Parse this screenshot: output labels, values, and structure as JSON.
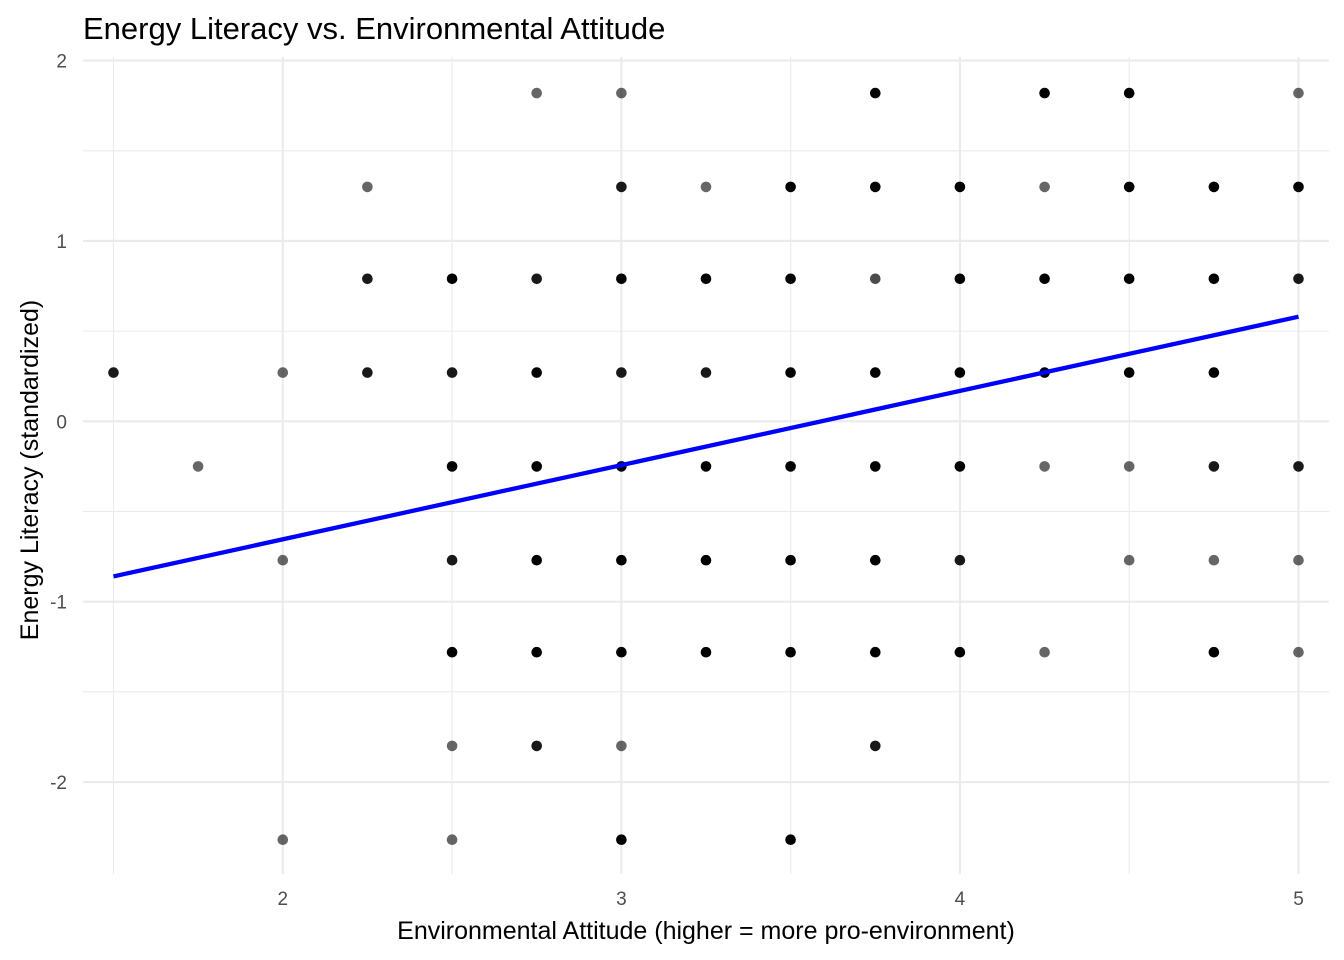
{
  "chart_data": {
    "type": "scatter",
    "title": "Energy Literacy vs. Environmental Attitude",
    "xlabel": "Environmental Attitude (higher = more pro-environment)",
    "ylabel": "Energy Literacy (standardized)",
    "xlim": [
      1.41,
      5.09
    ],
    "ylim": [
      -2.51,
      2.02
    ],
    "x_ticks": [
      2,
      3,
      4,
      5
    ],
    "x_tick_labels": [
      "2",
      "3",
      "4",
      "5"
    ],
    "x_minor": [
      1.5,
      2.5,
      3.5,
      4.5
    ],
    "y_ticks": [
      -2,
      -1,
      0,
      1,
      2
    ],
    "y_tick_labels": [
      "-2",
      "-1",
      "0",
      "1",
      "2"
    ],
    "y_minor": [
      -1.5,
      -0.5,
      0.5,
      1.5
    ],
    "grid": true,
    "colors": {
      "points": "#000000",
      "trend": "#0000ff",
      "grid": "#ebebeb"
    },
    "series": [
      {
        "type": "scatter",
        "points": [
          {
            "x": 1.5,
            "y": 0.27,
            "a": 0.9
          },
          {
            "x": 1.75,
            "y": -0.25,
            "a": 0.6
          },
          {
            "x": 2.0,
            "y": 0.27,
            "a": 0.6
          },
          {
            "x": 2.0,
            "y": -0.77,
            "a": 0.6
          },
          {
            "x": 2.0,
            "y": -2.32,
            "a": 0.6
          },
          {
            "x": 2.25,
            "y": 1.3,
            "a": 0.6
          },
          {
            "x": 2.25,
            "y": 0.79,
            "a": 0.9
          },
          {
            "x": 2.25,
            "y": 0.27,
            "a": 0.9
          },
          {
            "x": 2.5,
            "y": 0.79,
            "a": 1.0
          },
          {
            "x": 2.5,
            "y": 0.27,
            "a": 0.9
          },
          {
            "x": 2.5,
            "y": -0.25,
            "a": 1.0
          },
          {
            "x": 2.5,
            "y": -0.77,
            "a": 0.9
          },
          {
            "x": 2.5,
            "y": -1.28,
            "a": 1.0
          },
          {
            "x": 2.5,
            "y": -1.8,
            "a": 0.6
          },
          {
            "x": 2.5,
            "y": -2.32,
            "a": 0.6
          },
          {
            "x": 2.75,
            "y": 1.82,
            "a": 0.6
          },
          {
            "x": 2.75,
            "y": 0.79,
            "a": 0.9
          },
          {
            "x": 2.75,
            "y": 0.27,
            "a": 1.0
          },
          {
            "x": 2.75,
            "y": -0.25,
            "a": 1.0
          },
          {
            "x": 2.75,
            "y": -0.77,
            "a": 1.0
          },
          {
            "x": 2.75,
            "y": -1.28,
            "a": 1.0
          },
          {
            "x": 2.75,
            "y": -1.8,
            "a": 0.9
          },
          {
            "x": 3.0,
            "y": 1.82,
            "a": 0.6
          },
          {
            "x": 3.0,
            "y": 1.3,
            "a": 0.9
          },
          {
            "x": 3.0,
            "y": 0.79,
            "a": 1.0
          },
          {
            "x": 3.0,
            "y": 0.27,
            "a": 0.9
          },
          {
            "x": 3.0,
            "y": -0.25,
            "a": 1.0
          },
          {
            "x": 3.0,
            "y": -0.77,
            "a": 1.0
          },
          {
            "x": 3.0,
            "y": -1.28,
            "a": 1.0
          },
          {
            "x": 3.0,
            "y": -1.8,
            "a": 0.6
          },
          {
            "x": 3.0,
            "y": -2.32,
            "a": 1.0
          },
          {
            "x": 3.25,
            "y": 1.3,
            "a": 0.6
          },
          {
            "x": 3.25,
            "y": 0.79,
            "a": 1.0
          },
          {
            "x": 3.25,
            "y": 0.27,
            "a": 0.9
          },
          {
            "x": 3.25,
            "y": -0.25,
            "a": 1.0
          },
          {
            "x": 3.25,
            "y": -0.77,
            "a": 1.0
          },
          {
            "x": 3.25,
            "y": -1.28,
            "a": 1.0
          },
          {
            "x": 3.5,
            "y": 1.3,
            "a": 1.0
          },
          {
            "x": 3.5,
            "y": 0.79,
            "a": 1.0
          },
          {
            "x": 3.5,
            "y": 0.27,
            "a": 1.0
          },
          {
            "x": 3.5,
            "y": -0.25,
            "a": 1.0
          },
          {
            "x": 3.5,
            "y": -0.77,
            "a": 1.0
          },
          {
            "x": 3.5,
            "y": -1.28,
            "a": 1.0
          },
          {
            "x": 3.5,
            "y": -2.32,
            "a": 1.0
          },
          {
            "x": 3.75,
            "y": 1.82,
            "a": 1.0
          },
          {
            "x": 3.75,
            "y": 1.3,
            "a": 1.0
          },
          {
            "x": 3.75,
            "y": 0.79,
            "a": 0.7
          },
          {
            "x": 3.75,
            "y": 0.27,
            "a": 1.0
          },
          {
            "x": 3.75,
            "y": -0.25,
            "a": 1.0
          },
          {
            "x": 3.75,
            "y": -0.77,
            "a": 1.0
          },
          {
            "x": 3.75,
            "y": -1.28,
            "a": 1.0
          },
          {
            "x": 3.75,
            "y": -1.8,
            "a": 0.9
          },
          {
            "x": 4.0,
            "y": 1.3,
            "a": 1.0
          },
          {
            "x": 4.0,
            "y": 0.79,
            "a": 1.0
          },
          {
            "x": 4.0,
            "y": 0.27,
            "a": 1.0
          },
          {
            "x": 4.0,
            "y": -0.25,
            "a": 1.0
          },
          {
            "x": 4.0,
            "y": -0.77,
            "a": 0.9
          },
          {
            "x": 4.0,
            "y": -1.28,
            "a": 1.0
          },
          {
            "x": 4.25,
            "y": 1.82,
            "a": 1.0
          },
          {
            "x": 4.25,
            "y": 1.3,
            "a": 0.6
          },
          {
            "x": 4.25,
            "y": 0.79,
            "a": 1.0
          },
          {
            "x": 4.25,
            "y": 0.27,
            "a": 1.0
          },
          {
            "x": 4.25,
            "y": -0.25,
            "a": 0.6
          },
          {
            "x": 4.25,
            "y": -1.28,
            "a": 0.6
          },
          {
            "x": 4.5,
            "y": 1.82,
            "a": 1.0
          },
          {
            "x": 4.5,
            "y": 1.3,
            "a": 1.0
          },
          {
            "x": 4.5,
            "y": 0.79,
            "a": 1.0
          },
          {
            "x": 4.5,
            "y": 0.27,
            "a": 1.0
          },
          {
            "x": 4.5,
            "y": -0.25,
            "a": 0.6
          },
          {
            "x": 4.5,
            "y": -0.77,
            "a": 0.6
          },
          {
            "x": 4.75,
            "y": 1.3,
            "a": 1.0
          },
          {
            "x": 4.75,
            "y": 0.79,
            "a": 1.0
          },
          {
            "x": 4.75,
            "y": 0.27,
            "a": 1.0
          },
          {
            "x": 4.75,
            "y": -0.25,
            "a": 0.9
          },
          {
            "x": 4.75,
            "y": -0.77,
            "a": 0.6
          },
          {
            "x": 4.75,
            "y": -1.28,
            "a": 1.0
          },
          {
            "x": 5.0,
            "y": 1.82,
            "a": 0.6
          },
          {
            "x": 5.0,
            "y": 1.3,
            "a": 1.0
          },
          {
            "x": 5.0,
            "y": 0.79,
            "a": 0.9
          },
          {
            "x": 5.0,
            "y": -0.25,
            "a": 0.9
          },
          {
            "x": 5.0,
            "y": -0.77,
            "a": 0.6
          },
          {
            "x": 5.0,
            "y": -1.28,
            "a": 0.6
          }
        ]
      },
      {
        "type": "line",
        "x": [
          1.5,
          5.0
        ],
        "y": [
          -0.86,
          0.58
        ]
      }
    ]
  }
}
